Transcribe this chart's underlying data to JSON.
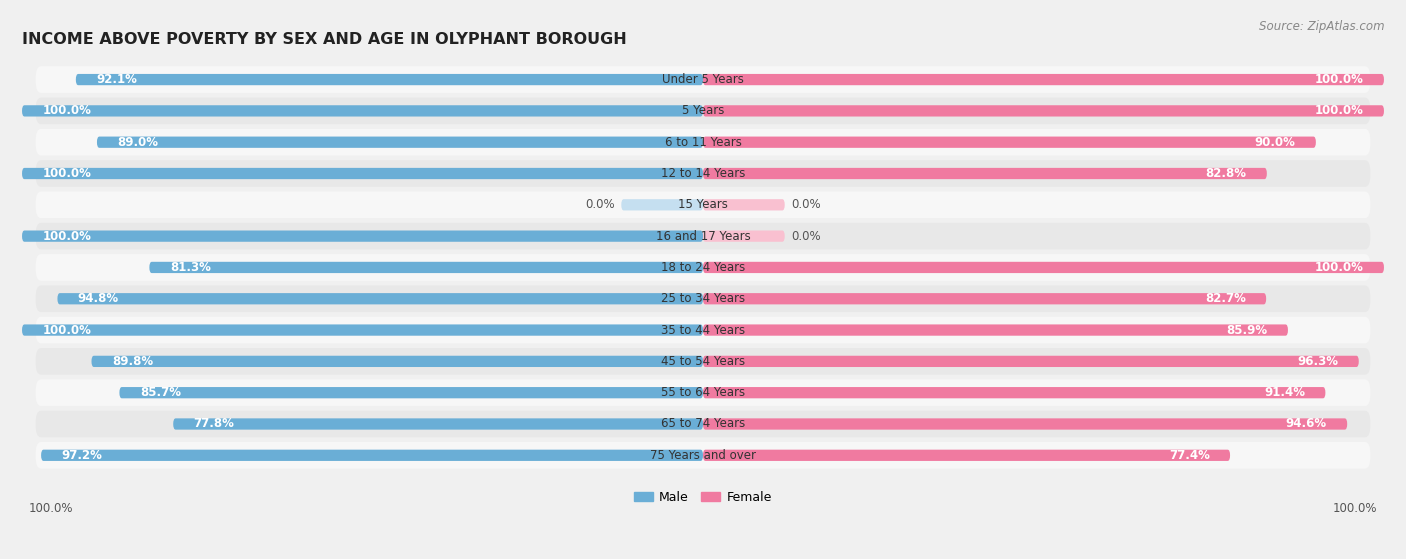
{
  "title": "INCOME ABOVE POVERTY BY SEX AND AGE IN OLYPHANT BOROUGH",
  "source": "Source: ZipAtlas.com",
  "categories": [
    "Under 5 Years",
    "5 Years",
    "6 to 11 Years",
    "12 to 14 Years",
    "15 Years",
    "16 and 17 Years",
    "18 to 24 Years",
    "25 to 34 Years",
    "35 to 44 Years",
    "45 to 54 Years",
    "55 to 64 Years",
    "65 to 74 Years",
    "75 Years and over"
  ],
  "male_values": [
    92.1,
    100.0,
    89.0,
    100.0,
    0.0,
    100.0,
    81.3,
    94.8,
    100.0,
    89.8,
    85.7,
    77.8,
    97.2
  ],
  "female_values": [
    100.0,
    100.0,
    90.0,
    82.8,
    0.0,
    0.0,
    100.0,
    82.7,
    85.9,
    96.3,
    91.4,
    94.6,
    77.4
  ],
  "male_color": "#6aaed6",
  "female_color": "#f07aa0",
  "male_zero_color": "#c5dff0",
  "female_zero_color": "#f9c0d0",
  "bar_height": 0.36,
  "background_color": "#f0f0f0",
  "row_bg_even": "#f7f7f7",
  "row_bg_odd": "#e8e8e8",
  "xlabel_bottom_left": "100.0%",
  "xlabel_bottom_right": "100.0%",
  "legend_male": "Male",
  "legend_female": "Female",
  "title_fontsize": 11.5,
  "label_fontsize": 8.5,
  "source_fontsize": 8.5,
  "value_fontsize": 8.5
}
